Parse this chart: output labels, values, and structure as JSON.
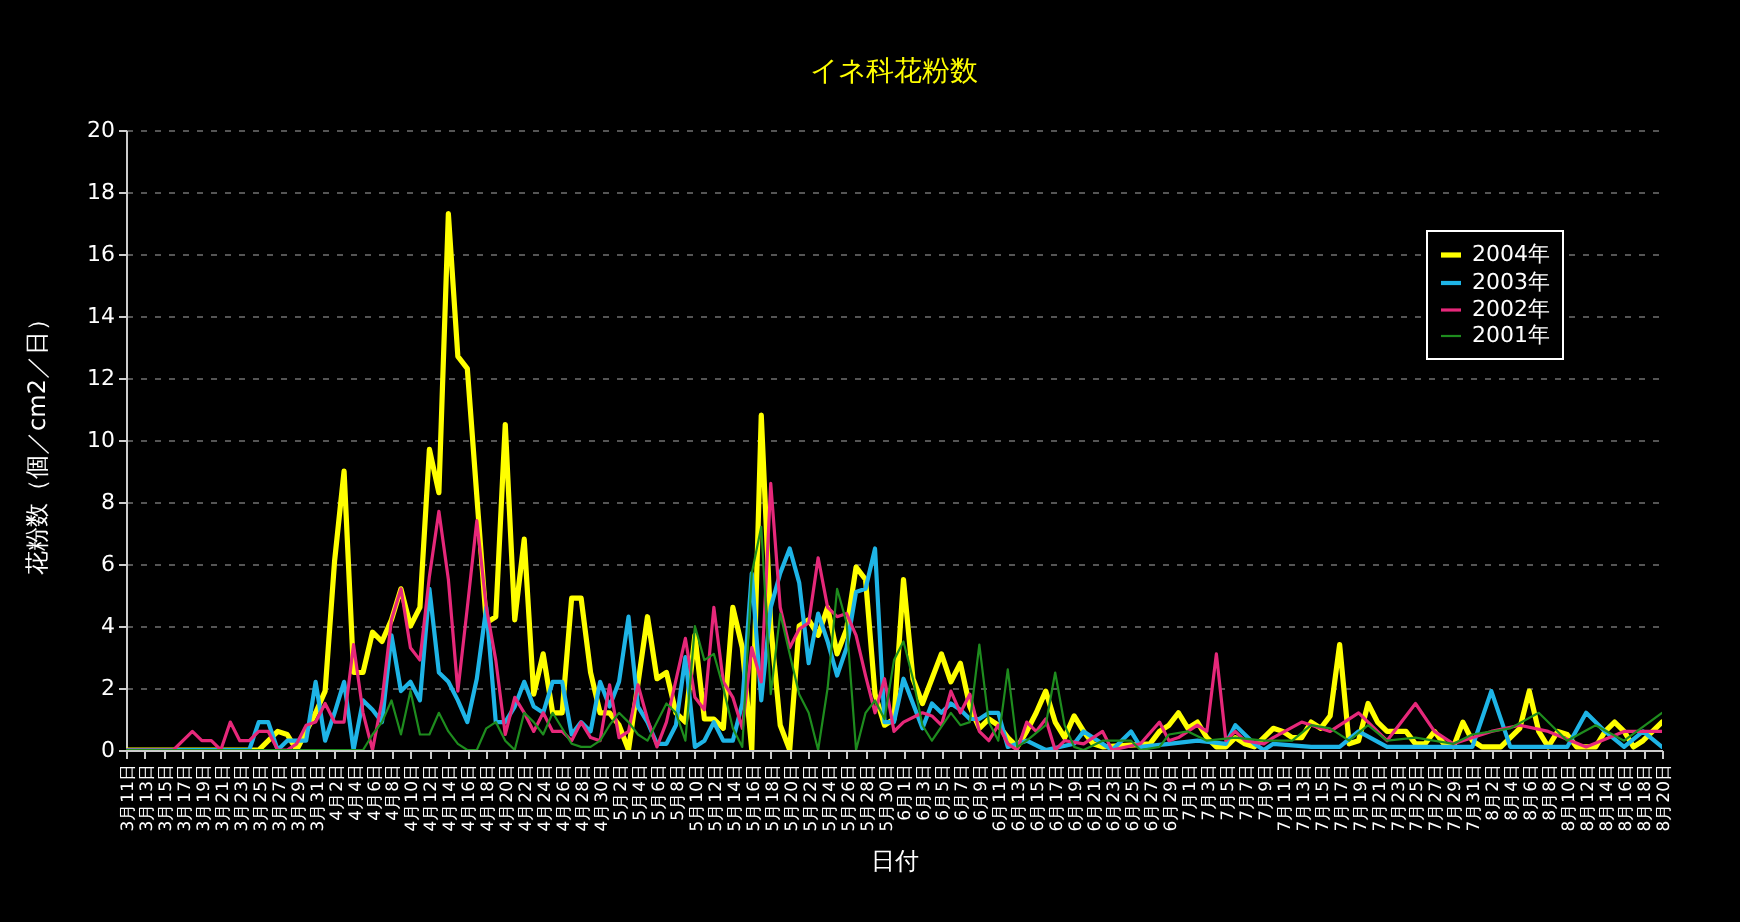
{
  "chart_data": {
    "type": "line",
    "title": "イネ科花粉数",
    "xlabel": "日付",
    "ylabel": "花粉数（個／cm2／日）",
    "xlim": [
      "--03-11",
      "--08-20"
    ],
    "ylim": [
      0,
      20
    ],
    "yticks": [
      0,
      2,
      4,
      6,
      8,
      10,
      12,
      14,
      16,
      18,
      20
    ],
    "grid": "y",
    "legend": "top right",
    "xticks": [
      {
        "value": "--03-11",
        "label": "3月11日"
      },
      {
        "value": "--03-13",
        "label": "3月13日"
      },
      {
        "value": "--03-15",
        "label": "3月15日"
      },
      {
        "value": "--03-17",
        "label": "3月17日"
      },
      {
        "value": "--03-19",
        "label": "3月19日"
      },
      {
        "value": "--03-21",
        "label": "3月21日"
      },
      {
        "value": "--03-23",
        "label": "3月23日"
      },
      {
        "value": "--03-25",
        "label": "3月25日"
      },
      {
        "value": "--03-27",
        "label": "3月27日"
      },
      {
        "value": "--03-29",
        "label": "3月29日"
      },
      {
        "value": "--03-31",
        "label": "3月31日"
      },
      {
        "value": "--04-02",
        "label": "4月2日"
      },
      {
        "value": "--04-04",
        "label": "4月4日"
      },
      {
        "value": "--04-06",
        "label": "4月6日"
      },
      {
        "value": "--04-08",
        "label": "4月8日"
      },
      {
        "value": "--04-10",
        "label": "4月10日"
      },
      {
        "value": "--04-12",
        "label": "4月12日"
      },
      {
        "value": "--04-14",
        "label": "4月14日"
      },
      {
        "value": "--04-16",
        "label": "4月16日"
      },
      {
        "value": "--04-18",
        "label": "4月18日"
      },
      {
        "value": "--04-20",
        "label": "4月20日"
      },
      {
        "value": "--04-22",
        "label": "4月22日"
      },
      {
        "value": "--04-24",
        "label": "4月24日"
      },
      {
        "value": "--04-26",
        "label": "4月26日"
      },
      {
        "value": "--04-28",
        "label": "4月28日"
      },
      {
        "value": "--04-30",
        "label": "4月30日"
      },
      {
        "value": "--05-02",
        "label": "5月2日"
      },
      {
        "value": "--05-04",
        "label": "5月4日"
      },
      {
        "value": "--05-06",
        "label": "5月6日"
      },
      {
        "value": "--05-08",
        "label": "5月8日"
      },
      {
        "value": "--05-10",
        "label": "5月10日"
      },
      {
        "value": "--05-12",
        "label": "5月12日"
      },
      {
        "value": "--05-14",
        "label": "5月14日"
      },
      {
        "value": "--05-16",
        "label": "5月16日"
      },
      {
        "value": "--05-18",
        "label": "5月18日"
      },
      {
        "value": "--05-20",
        "label": "5月20日"
      },
      {
        "value": "--05-22",
        "label": "5月22日"
      },
      {
        "value": "--05-24",
        "label": "5月24日"
      },
      {
        "value": "--05-26",
        "label": "5月26日"
      },
      {
        "value": "--05-28",
        "label": "5月28日"
      },
      {
        "value": "--05-30",
        "label": "5月30日"
      },
      {
        "value": "--06-01",
        "label": "6月1日"
      },
      {
        "value": "--06-03",
        "label": "6月3日"
      },
      {
        "value": "--06-05",
        "label": "6月5日"
      },
      {
        "value": "--06-07",
        "label": "6月7日"
      },
      {
        "value": "--06-09",
        "label": "6月9日"
      },
      {
        "value": "--06-11",
        "label": "6月11日"
      },
      {
        "value": "--06-13",
        "label": "6月13日"
      },
      {
        "value": "--06-15",
        "label": "6月15日"
      },
      {
        "value": "--06-17",
        "label": "6月17日"
      },
      {
        "value": "--06-19",
        "label": "6月19日"
      },
      {
        "value": "--06-21",
        "label": "6月21日"
      },
      {
        "value": "--06-23",
        "label": "6月23日"
      },
      {
        "value": "--06-25",
        "label": "6月25日"
      },
      {
        "value": "--06-27",
        "label": "6月27日"
      },
      {
        "value": "--06-29",
        "label": "6月29日"
      },
      {
        "value": "--07-01",
        "label": "7月1日"
      },
      {
        "value": "--07-03",
        "label": "7月3日"
      },
      {
        "value": "--07-05",
        "label": "7月5日"
      },
      {
        "value": "--07-07",
        "label": "7月7日"
      },
      {
        "value": "--07-09",
        "label": "7月9日"
      },
      {
        "value": "--07-11",
        "label": "7月11日"
      },
      {
        "value": "--07-13",
        "label": "7月13日"
      },
      {
        "value": "--07-15",
        "label": "7月15日"
      },
      {
        "value": "--07-17",
        "label": "7月17日"
      },
      {
        "value": "--07-19",
        "label": "7月19日"
      },
      {
        "value": "--07-21",
        "label": "7月21日"
      },
      {
        "value": "--07-23",
        "label": "7月23日"
      },
      {
        "value": "--07-25",
        "label": "7月25日"
      },
      {
        "value": "--07-27",
        "label": "7月27日"
      },
      {
        "value": "--07-29",
        "label": "7月29日"
      },
      {
        "value": "--07-31",
        "label": "7月31日"
      },
      {
        "value": "--08-02",
        "label": "8月2日"
      },
      {
        "value": "--08-04",
        "label": "8月4日"
      },
      {
        "value": "--08-06",
        "label": "8月6日"
      },
      {
        "value": "--08-08",
        "label": "8月8日"
      },
      {
        "value": "--08-10",
        "label": "8月10日"
      },
      {
        "value": "--08-12",
        "label": "8月12日"
      },
      {
        "value": "--08-14",
        "label": "8月14日"
      },
      {
        "value": "--08-16",
        "label": "8月16日"
      },
      {
        "value": "--08-18",
        "label": "8月18日"
      },
      {
        "value": "--08-20",
        "label": "8月20日"
      }
    ],
    "series": [
      {
        "name": "2004年",
        "color": "#ffff00",
        "x": [
          "--03-11",
          "--03-25",
          "--03-27",
          "--03-28",
          "--03-29",
          "--03-31",
          "--04-01",
          "--04-02",
          "--04-03",
          "--04-04",
          "--04-05",
          "--04-06",
          "--04-07",
          "--04-08",
          "--04-09",
          "--04-10",
          "--04-11",
          "--04-12",
          "--04-13",
          "--04-14",
          "--04-15",
          "--04-16",
          "--04-18",
          "--04-19",
          "--04-20",
          "--04-21",
          "--04-22",
          "--04-23",
          "--04-24",
          "--04-25",
          "--04-26",
          "--04-27",
          "--04-28",
          "--04-29",
          "--04-30",
          "--05-01",
          "--05-02",
          "--05-03",
          "--05-05",
          "--05-06",
          "--05-07",
          "--05-08",
          "--05-09",
          "--05-10",
          "--05-11",
          "--05-12",
          "--05-13",
          "--05-14",
          "--05-15",
          "--05-16",
          "--05-17",
          "--05-18",
          "--05-19",
          "--05-20",
          "--05-21",
          "--05-22",
          "--05-23",
          "--05-24",
          "--05-25",
          "--05-26",
          "--05-27",
          "--05-28",
          "--05-29",
          "--05-30",
          "--05-31",
          "--06-01",
          "--06-02",
          "--06-03",
          "--06-04",
          "--06-05",
          "--06-06",
          "--06-07",
          "--06-08",
          "--06-09",
          "--06-10",
          "--06-11",
          "--06-12",
          "--06-13",
          "--06-14",
          "--06-15",
          "--06-16",
          "--06-17",
          "--06-18",
          "--06-19",
          "--06-20",
          "--06-21",
          "--06-22",
          "--06-27",
          "--06-28",
          "--06-29",
          "--06-30",
          "--07-01",
          "--07-02",
          "--07-03",
          "--07-04",
          "--07-05",
          "--07-06",
          "--07-07",
          "--07-08",
          "--07-10",
          "--07-11",
          "--07-12",
          "--07-13",
          "--07-14",
          "--07-15",
          "--07-16",
          "--07-17",
          "--07-18",
          "--07-19",
          "--07-20",
          "--07-21",
          "--07-22",
          "--07-23",
          "--07-24",
          "--07-25",
          "--07-26",
          "--07-27",
          "--07-28",
          "--07-29",
          "--07-30",
          "--07-31",
          "--08-01",
          "--08-03",
          "--08-04",
          "--08-05",
          "--08-06",
          "--08-07",
          "--08-08",
          "--08-09",
          "--08-10",
          "--08-11",
          "--08-13",
          "--08-14",
          "--08-15",
          "--08-16",
          "--08-17",
          "--08-18",
          "--08-19",
          "--08-20"
        ],
        "values": [
          0,
          0,
          0.6,
          0.5,
          0,
          1.2,
          1.9,
          6.1,
          9.0,
          2.5,
          2.5,
          3.8,
          3.5,
          4.2,
          5.2,
          4.0,
          4.6,
          9.7,
          8.3,
          17.3,
          12.7,
          12.3,
          4.1,
          4.3,
          10.5,
          4.2,
          6.8,
          1.8,
          3.1,
          1.2,
          1.2,
          4.9,
          4.9,
          2.5,
          1.2,
          1.2,
          0.8,
          0,
          4.3,
          2.3,
          2.5,
          1.2,
          0.9,
          3.7,
          1.0,
          1.0,
          0.7,
          4.6,
          3.3,
          0,
          10.8,
          4.0,
          0.8,
          0,
          4.0,
          4.2,
          3.7,
          4.6,
          3.1,
          3.9,
          5.9,
          5.5,
          1.8,
          0.8,
          1.0,
          5.5,
          2.3,
          1.5,
          2.3,
          3.1,
          2.2,
          2.8,
          1.4,
          0.7,
          1.0,
          0.8,
          0.4,
          0.1,
          0.6,
          1.2,
          1.9,
          0.9,
          0.4,
          1.1,
          0.6,
          0.2,
          0.1,
          0.2,
          0.6,
          0.8,
          1.2,
          0.7,
          0.9,
          0.4,
          0.1,
          0.1,
          0.4,
          0.2,
          0.1,
          0.7,
          0.6,
          0.4,
          0.4,
          0.9,
          0.7,
          1.1,
          3.4,
          0.2,
          0.3,
          1.5,
          0.9,
          0.6,
          0.6,
          0.6,
          0.2,
          0.2,
          0.6,
          0.2,
          0.1,
          0.9,
          0.3,
          0.1,
          0.1,
          0.4,
          0.7,
          1.9,
          0.6,
          0.1,
          0.6,
          0.5,
          0.1,
          0.1,
          0.6,
          0.9,
          0.6,
          0.1,
          0.3,
          0.6,
          0.9
        ]
      },
      {
        "name": "2003年",
        "color": "#1eb4e6",
        "x": [
          "--03-11",
          "--03-24",
          "--03-25",
          "--03-26",
          "--03-27",
          "--03-28",
          "--03-30",
          "--03-31",
          "--04-01",
          "--04-02",
          "--04-03",
          "--04-04",
          "--04-05",
          "--04-06",
          "--04-07",
          "--04-08",
          "--04-09",
          "--04-10",
          "--04-11",
          "--04-12",
          "--04-13",
          "--04-14",
          "--04-15",
          "--04-16",
          "--04-17",
          "--04-18",
          "--04-19",
          "--04-20",
          "--04-21",
          "--04-22",
          "--04-23",
          "--04-24",
          "--04-25",
          "--04-26",
          "--04-27",
          "--04-28",
          "--04-29",
          "--04-30",
          "--05-01",
          "--05-02",
          "--05-03",
          "--05-04",
          "--05-05",
          "--05-06",
          "--05-07",
          "--05-08",
          "--05-09",
          "--05-10",
          "--05-11",
          "--05-12",
          "--05-13",
          "--05-14",
          "--05-15",
          "--05-16",
          "--05-17",
          "--05-18",
          "--05-19",
          "--05-20",
          "--05-21",
          "--05-22",
          "--05-23",
          "--05-24",
          "--05-25",
          "--05-26",
          "--05-27",
          "--05-28",
          "--05-29",
          "--05-30",
          "--05-31",
          "--06-01",
          "--06-03",
          "--06-04",
          "--06-05",
          "--06-06",
          "--06-07",
          "--06-08",
          "--06-09",
          "--06-10",
          "--06-11",
          "--06-12",
          "--06-14",
          "--06-16",
          "--06-19",
          "--06-20",
          "--06-22",
          "--06-23",
          "--06-25",
          "--06-26",
          "--06-29",
          "--07-02",
          "--07-05",
          "--07-06",
          "--07-08",
          "--07-09",
          "--07-10",
          "--07-14",
          "--07-17",
          "--07-19",
          "--07-22",
          "--07-27",
          "--07-31",
          "--08-02",
          "--08-04",
          "--08-08",
          "--08-10",
          "--08-12",
          "--08-14",
          "--08-16",
          "--08-18",
          "--08-20"
        ],
        "values": [
          0,
          0,
          0.9,
          0.9,
          0,
          0.3,
          0.3,
          2.2,
          0.3,
          1.2,
          2.2,
          0,
          1.6,
          1.3,
          0.9,
          3.7,
          1.9,
          2.2,
          1.6,
          5.2,
          2.5,
          2.2,
          1.6,
          0.9,
          2.3,
          4.6,
          0.9,
          0.9,
          1.4,
          2.2,
          1.4,
          1.2,
          2.2,
          2.2,
          0.5,
          0.9,
          0.6,
          2.2,
          1.4,
          2.2,
          4.3,
          1.4,
          0.9,
          0.2,
          0.2,
          0.8,
          3.0,
          0.1,
          0.3,
          0.9,
          0.3,
          0.3,
          1.5,
          5.7,
          1.6,
          4.6,
          5.7,
          6.5,
          5.4,
          2.8,
          4.4,
          3.5,
          2.4,
          3.3,
          5.1,
          5.2,
          6.5,
          0.9,
          0.9,
          2.3,
          0.7,
          1.5,
          1.2,
          1.5,
          1.3,
          1.0,
          1.0,
          1.2,
          1.2,
          0.1,
          0.3,
          0,
          0.2,
          0.6,
          0.2,
          0,
          0.6,
          0.1,
          0.2,
          0.3,
          0.2,
          0.8,
          0.2,
          0,
          0.2,
          0.1,
          0.1,
          0.6,
          0.1,
          0.1,
          0.1,
          1.9,
          0.1,
          0.1,
          0.1,
          1.2,
          0.6,
          0.1,
          0.6,
          0.1
        ]
      },
      {
        "name": "2002年",
        "color": "#e6287a",
        "x": [
          "--03-11",
          "--03-16",
          "--03-18",
          "--03-19",
          "--03-20",
          "--03-21",
          "--03-22",
          "--03-23",
          "--03-24",
          "--03-25",
          "--03-26",
          "--03-27",
          "--03-28",
          "--03-29",
          "--03-30",
          "--03-31",
          "--04-01",
          "--04-02",
          "--04-03",
          "--04-04",
          "--04-05",
          "--04-06",
          "--04-07",
          "--04-08",
          "--04-09",
          "--04-10",
          "--04-11",
          "--04-12",
          "--04-13",
          "--04-14",
          "--04-15",
          "--04-16",
          "--04-17",
          "--04-18",
          "--04-19",
          "--04-20",
          "--04-21",
          "--04-22",
          "--04-23",
          "--04-24",
          "--04-25",
          "--04-26",
          "--04-27",
          "--04-28",
          "--04-29",
          "--04-30",
          "--05-01",
          "--05-02",
          "--05-03",
          "--05-04",
          "--05-05",
          "--05-06",
          "--05-07",
          "--05-09",
          "--05-10",
          "--05-11",
          "--05-12",
          "--05-13",
          "--05-14",
          "--05-15",
          "--05-16",
          "--05-17",
          "--05-18",
          "--05-19",
          "--05-20",
          "--05-21",
          "--05-22",
          "--05-23",
          "--05-24",
          "--05-25",
          "--05-26",
          "--05-27",
          "--05-28",
          "--05-29",
          "--05-30",
          "--05-31",
          "--06-01",
          "--06-03",
          "--06-04",
          "--06-05",
          "--06-06",
          "--06-07",
          "--06-08",
          "--06-09",
          "--06-10",
          "--06-11",
          "--06-12",
          "--06-13",
          "--06-14",
          "--06-15",
          "--06-16",
          "--06-17",
          "--06-18",
          "--06-20",
          "--06-22",
          "--06-23",
          "--06-26",
          "--06-28",
          "--06-29",
          "--06-30",
          "--07-01",
          "--07-02",
          "--07-03",
          "--07-04",
          "--07-05",
          "--07-06",
          "--07-07",
          "--07-09",
          "--07-10",
          "--07-13",
          "--07-16",
          "--07-19",
          "--07-22",
          "--07-25",
          "--07-27",
          "--07-29",
          "--08-02",
          "--08-05",
          "--08-08",
          "--08-12",
          "--08-16",
          "--08-20"
        ],
        "values": [
          0,
          0,
          0.6,
          0.3,
          0.3,
          0,
          0.9,
          0.3,
          0.3,
          0.6,
          0.6,
          0,
          0,
          0.2,
          0.8,
          0.9,
          1.5,
          0.9,
          0.9,
          3.4,
          1.2,
          0,
          1.6,
          4.2,
          5.2,
          3.3,
          2.9,
          5.6,
          7.7,
          5.5,
          1.9,
          4.6,
          7.4,
          4.6,
          2.9,
          0.5,
          1.7,
          1.2,
          0.6,
          1.2,
          0.6,
          0.6,
          0.3,
          0.9,
          0.4,
          0.3,
          2.1,
          0.4,
          0.6,
          2.1,
          1.0,
          0.1,
          0.9,
          3.6,
          1.7,
          1.3,
          4.6,
          2.2,
          1.7,
          0.7,
          3.3,
          2.2,
          8.6,
          4.6,
          3.3,
          3.9,
          4.1,
          6.2,
          4.6,
          4.3,
          4.4,
          3.7,
          2.4,
          1.2,
          2.3,
          0.6,
          0.9,
          1.2,
          1.1,
          0.8,
          1.9,
          1.2,
          1.8,
          0.6,
          0.3,
          0.8,
          0.2,
          0,
          0.9,
          0.6,
          1.0,
          0,
          0.3,
          0.2,
          0.6,
          0,
          0.2,
          0.9,
          0.3,
          0.4,
          0.6,
          0.8,
          0.6,
          3.1,
          0.3,
          0.6,
          0.3,
          0.2,
          0.4,
          0.9,
          0.6,
          1.2,
          0.3,
          1.5,
          0.6,
          0.2,
          0.6,
          0.8,
          0.6,
          0.1,
          0.6,
          0.6
        ]
      },
      {
        "name": "2001年",
        "color": "#1e8c1e",
        "x": [
          "--03-11",
          "--04-05",
          "--04-06",
          "--04-07",
          "--04-08",
          "--04-09",
          "--04-10",
          "--04-11",
          "--04-12",
          "--04-13",
          "--04-14",
          "--04-15",
          "--04-16",
          "--04-17",
          "--04-18",
          "--04-19",
          "--04-20",
          "--04-21",
          "--04-22",
          "--04-23",
          "--04-24",
          "--04-25",
          "--04-27",
          "--04-28",
          "--04-29",
          "--04-30",
          "--05-01",
          "--05-02",
          "--05-03",
          "--05-04",
          "--05-05",
          "--05-07",
          "--05-08",
          "--05-09",
          "--05-10",
          "--05-11",
          "--05-12",
          "--05-13",
          "--05-14",
          "--05-15",
          "--05-16",
          "--05-17",
          "--05-18",
          "--05-19",
          "--05-20",
          "--05-21",
          "--05-22",
          "--05-23",
          "--05-24",
          "--05-25",
          "--05-26",
          "--05-27",
          "--05-28",
          "--05-29",
          "--05-30",
          "--05-31",
          "--06-01",
          "--06-02",
          "--06-03",
          "--06-04",
          "--06-06",
          "--06-07",
          "--06-08",
          "--06-09",
          "--06-10",
          "--06-11",
          "--06-12",
          "--06-13",
          "--06-14",
          "--06-16",
          "--06-17",
          "--06-18",
          "--06-19",
          "--06-20",
          "--06-22",
          "--06-25",
          "--06-26",
          "--06-28",
          "--06-29",
          "--07-01",
          "--07-03",
          "--07-06",
          "--07-09",
          "--07-12",
          "--07-14",
          "--07-16",
          "--07-18",
          "--07-20",
          "--07-22",
          "--07-25",
          "--07-29",
          "--07-31",
          "--08-04",
          "--08-07",
          "--08-10",
          "--08-13",
          "--08-16",
          "--08-20"
        ],
        "values": [
          0,
          0,
          0.5,
          0.9,
          1.6,
          0.5,
          1.9,
          0.5,
          0.5,
          1.2,
          0.6,
          0.2,
          0,
          0,
          0.7,
          0.9,
          0.3,
          0,
          1.2,
          0.9,
          0.5,
          1.2,
          0.2,
          0.1,
          0.1,
          0.3,
          0.8,
          1.2,
          0.9,
          0.5,
          0.3,
          1.5,
          1.2,
          0.3,
          4.0,
          2.9,
          3.1,
          2.0,
          0.7,
          0.1,
          5.7,
          7.2,
          1.8,
          4.4,
          3.1,
          1.8,
          1.2,
          0,
          2.0,
          5.2,
          4.1,
          0,
          1.2,
          1.6,
          1.0,
          2.9,
          3.5,
          2.3,
          0.8,
          0.3,
          1.2,
          0.8,
          0.9,
          3.4,
          0.9,
          0.3,
          2.6,
          0.1,
          0.3,
          0.8,
          2.5,
          0.8,
          0.1,
          0,
          0.3,
          0.3,
          0,
          0.1,
          0.5,
          0.6,
          0.3,
          0.4,
          0.3,
          0.3,
          0.8,
          0.7,
          0.3,
          0.8,
          0.3,
          0.4,
          0.2,
          0.5,
          0.7,
          1.2,
          0.3,
          0.8,
          0.3,
          1.2
        ]
      }
    ]
  }
}
